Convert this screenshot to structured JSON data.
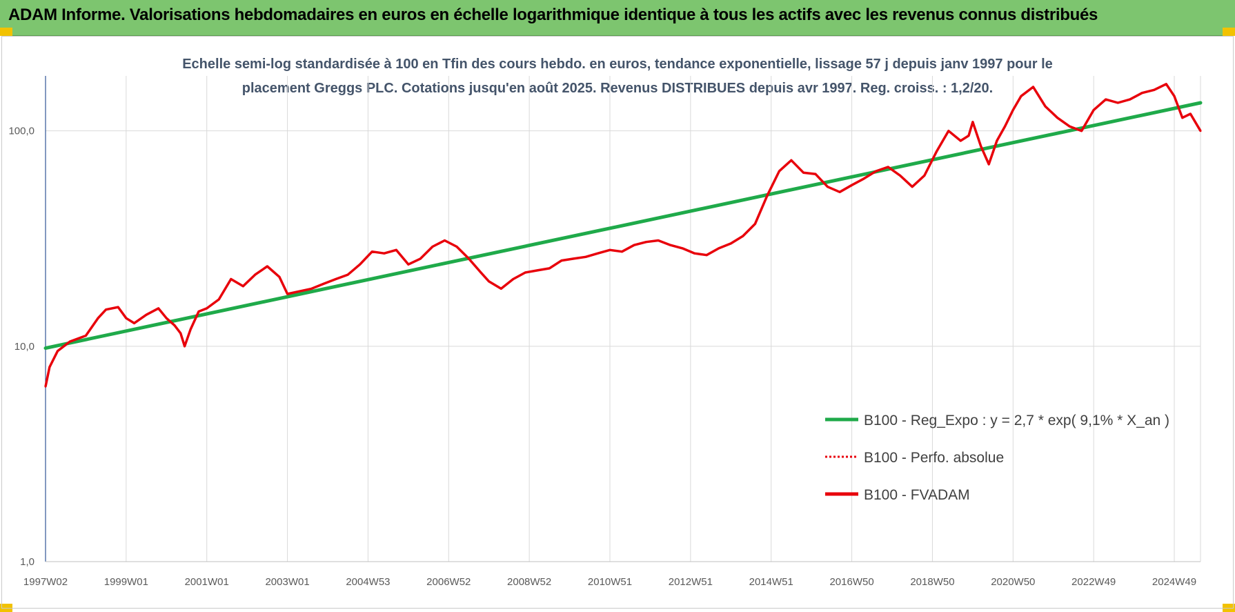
{
  "banner": {
    "title": "ADAM Informe. Valorisations hebdomadaires en euros en échelle logarithmique identique à tous les actifs avec les revenus connus distribués"
  },
  "colors": {
    "banner_bg": "#7dc56f",
    "corner": "#f2c200",
    "trend": "#1faa4a",
    "fvadam": "#e8000b",
    "perfo": "#e8000b"
  },
  "chart_data": {
    "type": "line",
    "title": "Echelle semi-log standardisée à 100 en Tfin des cours hebdo. en euros, tendance exponentielle, lissage 57 j depuis janv 1997 pour le placement Greggs PLC. Cotations jusqu'en août 2025. Revenus DISTRIBUES depuis avr 1997. Reg. croiss. : 1,2/20.",
    "title_lines": [
      "Echelle semi-log standardisée à 100 en Tfin des cours hebdo. en euros, tendance exponentielle, lissage 57 j depuis janv 1997 pour le",
      "placement Greggs PLC. Cotations jusqu'en août 2025. Revenus DISTRIBUES depuis avr 1997. Reg. croiss. : 1,2/20."
    ],
    "y_scale": "log",
    "ylim": [
      1,
      180
    ],
    "y_ticks": [
      "1,0",
      "10,0",
      "100,0"
    ],
    "x_ticks": [
      "1997W02",
      "1999W01",
      "2001W01",
      "2003W01",
      "2004W53",
      "2006W52",
      "2008W52",
      "2010W51",
      "2012W51",
      "2014W51",
      "2016W50",
      "2018W50",
      "2020W50",
      "2022W49",
      "2024W49"
    ],
    "x_range": [
      1997.0,
      2025.65
    ],
    "grid": "vertical and horizontal",
    "legend_position": "lower-right",
    "legend": [
      {
        "label": "B100 - Reg_Expo : y = 2,7 * exp( 9,1% *  X_an )",
        "style": "solid-green"
      },
      {
        "label": "B100 - Perfo. absolue",
        "style": "dotted-red"
      },
      {
        "label": "B100 - FVADAM",
        "style": "solid-red"
      }
    ],
    "series": [
      {
        "name": "B100 - Reg_Expo : y = 2,7 * exp( 9,1% *  X_an )",
        "x": [
          1997.0,
          2025.65
        ],
        "values": [
          9.8,
          135
        ]
      },
      {
        "name": "B100 - Perfo. absolue",
        "x": [],
        "values": []
      },
      {
        "name": "B100 - FVADAM",
        "x": [
          1997.0,
          1997.1,
          1997.3,
          1997.6,
          1998.0,
          1998.3,
          1998.5,
          1998.8,
          1999.0,
          1999.2,
          1999.5,
          1999.8,
          2000.0,
          2000.2,
          2000.35,
          2000.45,
          2000.6,
          2000.8,
          2001.0,
          2001.3,
          2001.6,
          2001.9,
          2002.2,
          2002.5,
          2002.8,
          2003.0,
          2003.3,
          2003.6,
          2003.9,
          2004.2,
          2004.5,
          2004.8,
          2005.1,
          2005.4,
          2005.7,
          2006.0,
          2006.3,
          2006.6,
          2006.9,
          2007.2,
          2007.5,
          2007.8,
          2008.0,
          2008.3,
          2008.6,
          2008.9,
          2009.2,
          2009.5,
          2009.8,
          2010.1,
          2010.4,
          2010.7,
          2011.0,
          2011.3,
          2011.6,
          2011.9,
          2012.2,
          2012.5,
          2012.8,
          2013.1,
          2013.4,
          2013.7,
          2014.0,
          2014.3,
          2014.6,
          2014.9,
          2015.2,
          2015.5,
          2015.8,
          2016.1,
          2016.4,
          2016.7,
          2017.0,
          2017.3,
          2017.6,
          2017.9,
          2018.2,
          2018.5,
          2018.8,
          2019.1,
          2019.4,
          2019.7,
          2019.9,
          2020.0,
          2020.2,
          2020.4,
          2020.6,
          2020.8,
          2021.0,
          2021.2,
          2021.5,
          2021.8,
          2022.1,
          2022.4,
          2022.7,
          2023.0,
          2023.3,
          2023.6,
          2023.9,
          2024.2,
          2024.5,
          2024.8,
          2025.0,
          2025.2,
          2025.4,
          2025.65
        ],
        "values": [
          6.5,
          8.0,
          9.5,
          10.5,
          11.2,
          13.5,
          14.8,
          15.2,
          13.5,
          12.8,
          14.0,
          15.0,
          13.5,
          12.5,
          11.5,
          10.0,
          12.0,
          14.5,
          15.0,
          16.5,
          20.5,
          19.0,
          21.5,
          23.5,
          21.0,
          17.5,
          18.0,
          18.5,
          19.5,
          20.5,
          21.5,
          24.0,
          27.5,
          27.0,
          28.0,
          24.0,
          25.5,
          29.0,
          31.0,
          29.0,
          25.5,
          22.0,
          20.0,
          18.5,
          20.5,
          22.0,
          22.5,
          23.0,
          25.0,
          25.5,
          26.0,
          27.0,
          28.0,
          27.5,
          29.5,
          30.5,
          31.0,
          29.5,
          28.5,
          27.0,
          26.5,
          28.5,
          30.0,
          32.5,
          37.0,
          50.0,
          65.0,
          73.0,
          64.0,
          63.0,
          55.0,
          52.0,
          56.0,
          60.0,
          65.0,
          68.0,
          62.0,
          55.0,
          62.0,
          80.0,
          100.0,
          90.0,
          95.0,
          110.0,
          85.0,
          70.0,
          90.0,
          105.0,
          125.0,
          145.0,
          160.0,
          130.0,
          115.0,
          105.0,
          100.0,
          125.0,
          140.0,
          135.0,
          140.0,
          150.0,
          155.0,
          165.0,
          145.0,
          115.0,
          120.0,
          100.0
        ]
      }
    ]
  }
}
